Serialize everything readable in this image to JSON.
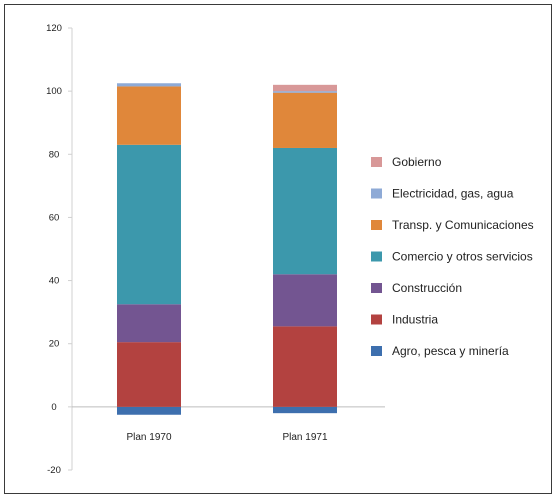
{
  "chart_data": {
    "type": "bar",
    "stacked": true,
    "categories": [
      "Plan 1970",
      "Plan 1971"
    ],
    "ylim": [
      -20,
      120
    ],
    "yticks": [
      "120",
      "100",
      "80",
      "60",
      "40",
      "20",
      "0",
      "-20"
    ],
    "ytick_values": [
      120,
      100,
      80,
      60,
      40,
      20,
      0,
      -20
    ],
    "legend_position": "right",
    "series": [
      {
        "name": "Agro, pesca y minería",
        "color": "#3d6fae",
        "values": [
          -2.5,
          -2
        ]
      },
      {
        "name": "Industria",
        "color": "#b34240",
        "values": [
          20.5,
          25.5
        ]
      },
      {
        "name": "Construcción",
        "color": "#735591",
        "values": [
          12,
          16.5
        ]
      },
      {
        "name": "Comercio y otros servicios",
        "color": "#3c98ac",
        "values": [
          50.5,
          40
        ]
      },
      {
        "name": "Transp. y Comunicaciones",
        "color": "#e0873a",
        "values": [
          18.5,
          17.5
        ]
      },
      {
        "name": "Electricidad, gas, agua",
        "color": "#8eaad6",
        "values": [
          1,
          0.5
        ]
      },
      {
        "name": "Gobierno",
        "color": "#d89898",
        "values": [
          0,
          2
        ]
      }
    ],
    "legend_order": [
      "Gobierno",
      "Electricidad, gas, agua",
      "Transp. y Comunicaciones",
      "Comercio y otros servicios",
      "Construcción",
      "Industria",
      "Agro, pesca y minería"
    ]
  }
}
